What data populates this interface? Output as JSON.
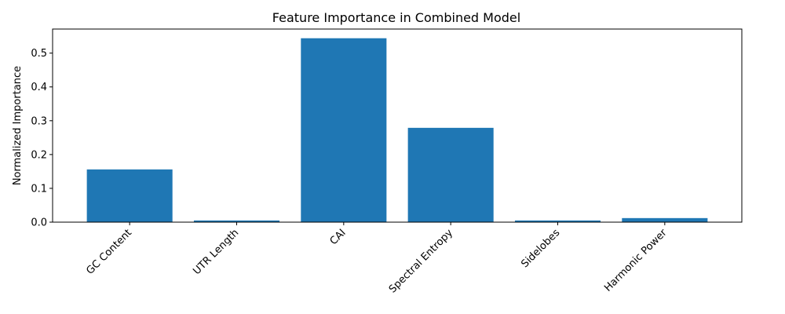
{
  "chart_data": {
    "type": "bar",
    "title": "Feature Importance in Combined Model",
    "xlabel": "",
    "ylabel": "Normalized Importance",
    "categories": [
      "GC Content",
      "UTR Length",
      "CAI",
      "Spectral Entropy",
      "Sidelobes",
      "Harmonic Power"
    ],
    "values": [
      0.156,
      0.005,
      0.544,
      0.279,
      0.005,
      0.012
    ],
    "ylim": [
      0,
      0.5712
    ],
    "yticks": [
      "0.0",
      "0.1",
      "0.2",
      "0.3",
      "0.4",
      "0.5"
    ],
    "ytick_values": [
      0,
      0.1,
      0.2,
      0.3,
      0.4,
      0.5
    ],
    "bar_color": "#1f77b4",
    "grid": false,
    "legend": "none"
  }
}
